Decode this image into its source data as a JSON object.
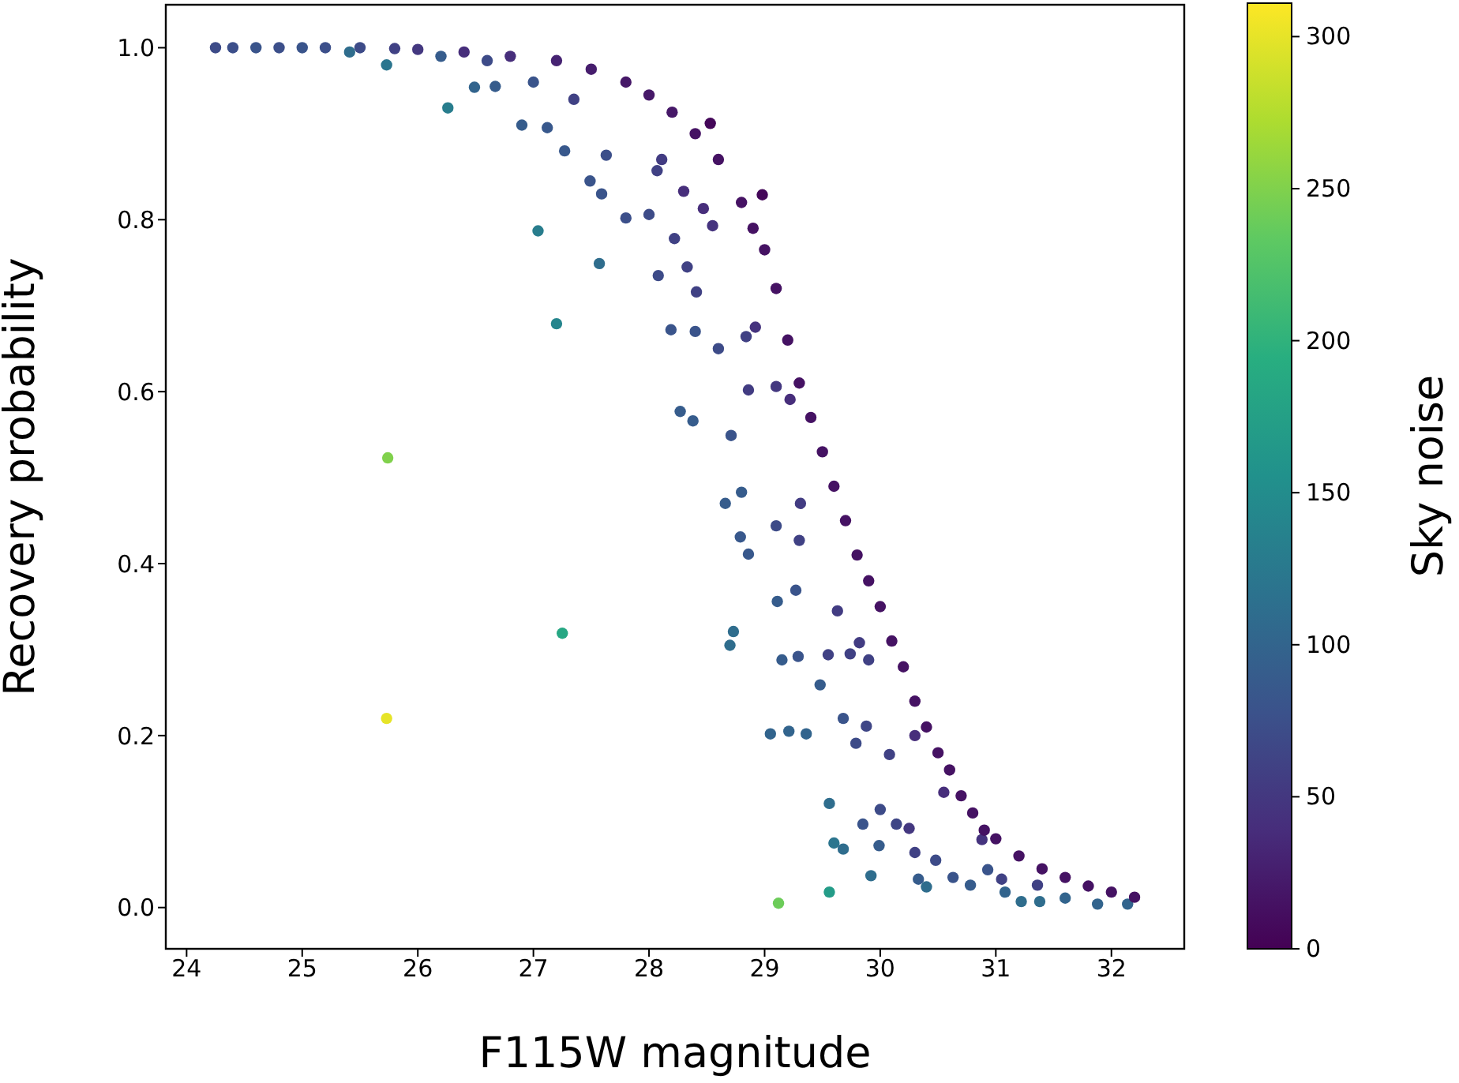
{
  "chart_data": {
    "type": "scatter",
    "xlabel": "F115W magnitude",
    "ylabel": "Recovery probability",
    "clabel": "Sky noise",
    "marker": "circle",
    "xlim": [
      23.82,
      32.63
    ],
    "ylim": [
      -0.048,
      1.05
    ],
    "clim": [
      0,
      311
    ],
    "xticks": [
      24,
      25,
      26,
      27,
      28,
      29,
      30,
      31,
      32
    ],
    "yticks": [
      {
        "value": 0,
        "label": "0.0"
      },
      {
        "value": 0.2,
        "label": "0.2"
      },
      {
        "value": 0.4,
        "label": "0.4"
      },
      {
        "value": 0.6,
        "label": "0.6"
      },
      {
        "value": 0.8,
        "label": "0.8"
      },
      {
        "value": 1,
        "label": "1.0"
      }
    ],
    "cticks": [
      0,
      50,
      100,
      150,
      200,
      250,
      300
    ],
    "x": [
      24.25,
      24.4,
      24.6,
      24.8,
      25.0,
      25.2,
      25.41,
      25.5,
      25.73,
      25.8,
      26.0,
      26.2,
      26.26,
      26.4,
      26.49,
      26.6,
      26.67,
      26.8,
      26.9,
      27.0,
      27.04,
      27.12,
      27.2,
      27.2,
      27.25,
      27.27,
      27.35,
      27.49,
      27.5,
      27.57,
      27.59,
      27.63,
      27.8,
      27.8,
      28.0,
      28.0,
      28.07,
      28.08,
      28.11,
      28.19,
      28.2,
      28.22,
      28.27,
      28.3,
      28.33,
      28.38,
      28.4,
      28.4,
      28.41,
      28.47,
      28.53,
      28.55,
      28.6,
      28.6,
      28.66,
      28.7,
      28.71,
      28.73,
      28.79,
      28.8,
      28.8,
      28.84,
      28.86,
      28.86,
      28.9,
      28.92,
      28.98,
      29.0,
      29.05,
      29.1,
      29.1,
      29.1,
      29.11,
      29.12,
      29.15,
      29.2,
      29.21,
      29.22,
      29.27,
      29.29,
      29.3,
      29.3,
      29.31,
      29.36,
      29.4,
      29.48,
      29.5,
      29.55,
      29.56,
      29.56,
      29.6,
      29.6,
      29.63,
      29.68,
      29.68,
      29.7,
      29.74,
      29.79,
      29.8,
      29.82,
      29.85,
      29.88,
      29.9,
      29.9,
      29.92,
      29.99,
      30.0,
      30.0,
      30.08,
      30.1,
      30.14,
      30.2,
      30.25,
      30.3,
      30.3,
      30.3,
      30.33,
      30.4,
      30.4,
      30.48,
      30.5,
      30.55,
      30.6,
      30.63,
      30.7,
      30.78,
      30.8,
      30.88,
      30.9,
      30.93,
      31.0,
      31.05,
      31.08,
      31.2,
      31.22,
      31.36,
      31.38,
      31.4,
      31.6,
      31.6,
      31.8,
      31.88,
      32.0,
      32.14,
      32.2,
      25.73,
      25.74
    ],
    "values": [
      1.0,
      1.0,
      1.0,
      1.0,
      1.0,
      1.0,
      0.995,
      1.0,
      0.98,
      0.999,
      0.998,
      0.99,
      0.93,
      0.995,
      0.954,
      0.985,
      0.955,
      0.99,
      0.91,
      0.96,
      0.787,
      0.907,
      0.985,
      0.679,
      0.319,
      0.88,
      0.94,
      0.845,
      0.975,
      0.749,
      0.83,
      0.875,
      0.96,
      0.802,
      0.945,
      0.806,
      0.857,
      0.735,
      0.87,
      0.672,
      0.925,
      0.778,
      0.577,
      0.833,
      0.745,
      0.566,
      0.9,
      0.67,
      0.716,
      0.813,
      0.912,
      0.793,
      0.87,
      0.65,
      0.47,
      0.305,
      0.549,
      0.321,
      0.431,
      0.82,
      0.483,
      0.664,
      0.411,
      0.602,
      0.79,
      0.675,
      0.829,
      0.765,
      0.202,
      0.72,
      0.444,
      0.606,
      0.356,
      0.005,
      0.288,
      0.66,
      0.205,
      0.591,
      0.369,
      0.292,
      0.61,
      0.427,
      0.47,
      0.202,
      0.57,
      0.259,
      0.53,
      0.294,
      0.121,
      0.018,
      0.49,
      0.075,
      0.345,
      0.068,
      0.22,
      0.45,
      0.295,
      0.191,
      0.41,
      0.308,
      0.097,
      0.211,
      0.38,
      0.288,
      0.037,
      0.072,
      0.35,
      0.114,
      0.178,
      0.31,
      0.097,
      0.28,
      0.092,
      0.24,
      0.2,
      0.064,
      0.033,
      0.21,
      0.024,
      0.055,
      0.18,
      0.134,
      0.16,
      0.035,
      0.13,
      0.026,
      0.11,
      0.079,
      0.09,
      0.044,
      0.08,
      0.033,
      0.018,
      0.06,
      0.007,
      0.026,
      0.007,
      0.045,
      0.035,
      0.011,
      0.025,
      0.004,
      0.018,
      0.004,
      0.012,
      0.22,
      0.523
    ],
    "cvalues": [
      70,
      75,
      80,
      75,
      80,
      75,
      110,
      70,
      120,
      60,
      50,
      90,
      130,
      40,
      100,
      70,
      90,
      40,
      90,
      80,
      130,
      85,
      30,
      140,
      185,
      85,
      60,
      80,
      25,
      110,
      80,
      75,
      20,
      75,
      20,
      70,
      60,
      70,
      55,
      80,
      20,
      60,
      90,
      40,
      60,
      90,
      15,
      80,
      60,
      40,
      5,
      45,
      15,
      70,
      90,
      110,
      80,
      110,
      85,
      15,
      90,
      60,
      85,
      55,
      15,
      45,
      5,
      15,
      100,
      15,
      70,
      50,
      90,
      240,
      90,
      15,
      100,
      40,
      80,
      80,
      15,
      60,
      55,
      100,
      15,
      90,
      15,
      60,
      110,
      170,
      15,
      120,
      55,
      110,
      80,
      15,
      60,
      70,
      15,
      55,
      80,
      65,
      15,
      60,
      110,
      90,
      15,
      70,
      60,
      15,
      65,
      15,
      50,
      15,
      40,
      60,
      90,
      15,
      110,
      70,
      15,
      40,
      15,
      80,
      15,
      90,
      15,
      45,
      15,
      80,
      15,
      60,
      100,
      15,
      110,
      60,
      110,
      15,
      15,
      100,
      15,
      100,
      15,
      100,
      15,
      300,
      250
    ]
  }
}
